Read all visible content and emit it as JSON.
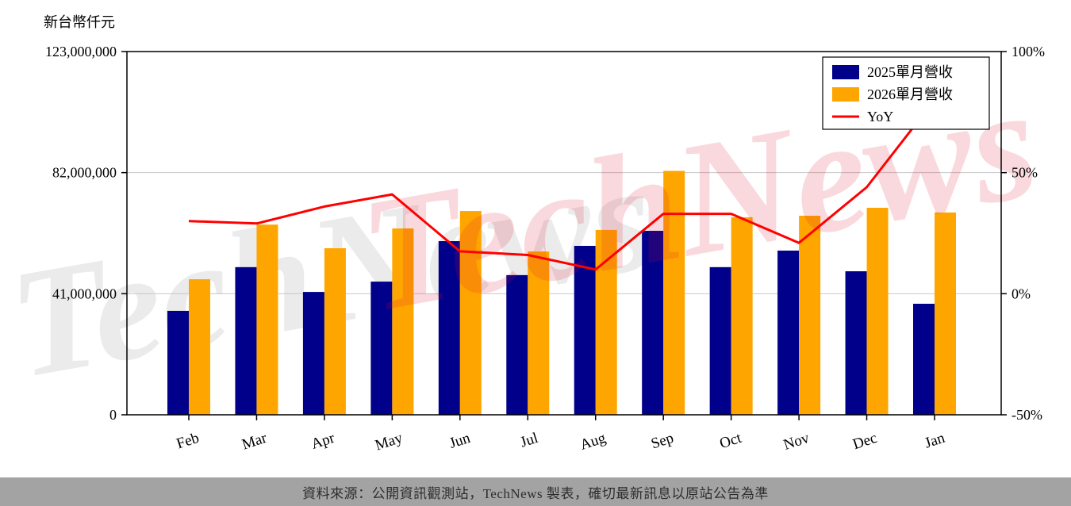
{
  "page": {
    "unit_label": "新台幣仟元",
    "footer_text": "資料來源：公開資訊觀測站，TechNews 製表，確切最新訊息以原站公告為準",
    "watermark": "TechNews"
  },
  "colors": {
    "bar_2025": "#00008b",
    "bar_2026": "#ffa500",
    "yoy_line": "#ff0000",
    "grid": "#c8c8c8",
    "axis": "#000000",
    "footer_bg": "#a3a3a3",
    "watermark_gray": "rgba(60,60,60,0.10)",
    "watermark_red": "rgba(215,20,45,0.16)"
  },
  "chart_data": {
    "type": "bar",
    "title": "",
    "categories": [
      "Feb",
      "Mar",
      "Apr",
      "May",
      "Jun",
      "Jul",
      "Aug",
      "Sep",
      "Oct",
      "Nov",
      "Dec",
      "Jan"
    ],
    "series": [
      {
        "name": "2025單月營收",
        "kind": "bar",
        "axis": "left",
        "color": "#00008b",
        "values": [
          35200000,
          50000000,
          41600000,
          45100000,
          58800000,
          47300000,
          57200000,
          62300000,
          50000000,
          55600000,
          48600000,
          37600000
        ]
      },
      {
        "name": "2026單月營收",
        "kind": "bar",
        "axis": "left",
        "color": "#ffa500",
        "values": [
          45900000,
          64400000,
          56400000,
          63100000,
          69000000,
          55300000,
          62600000,
          82600000,
          66900000,
          67400000,
          70100000,
          68500000
        ]
      },
      {
        "name": "YoY",
        "kind": "line",
        "axis": "right",
        "color": "#ff0000",
        "values": [
          30,
          29,
          36,
          41,
          17.5,
          16,
          10,
          33,
          33,
          21,
          44,
          80
        ]
      }
    ],
    "left_axis": {
      "unit": "新台幣仟元",
      "tick_labels": [
        "0",
        "41,000,000",
        "82,000,000",
        "123,000,000"
      ],
      "tick_values": [
        0,
        41000000,
        82000000,
        123000000
      ],
      "min": 0,
      "max": 123000000
    },
    "right_axis": {
      "tick_labels": [
        "-50%",
        "0%",
        "50%",
        "100%"
      ],
      "tick_values": [
        -50,
        0,
        50,
        100
      ],
      "min": -50,
      "max": 100
    },
    "legend": {
      "position": "top-right",
      "entries": [
        "2025單月營收",
        "2026單月營收",
        "YoY"
      ]
    },
    "grid": true,
    "watermark": "TechNews"
  }
}
